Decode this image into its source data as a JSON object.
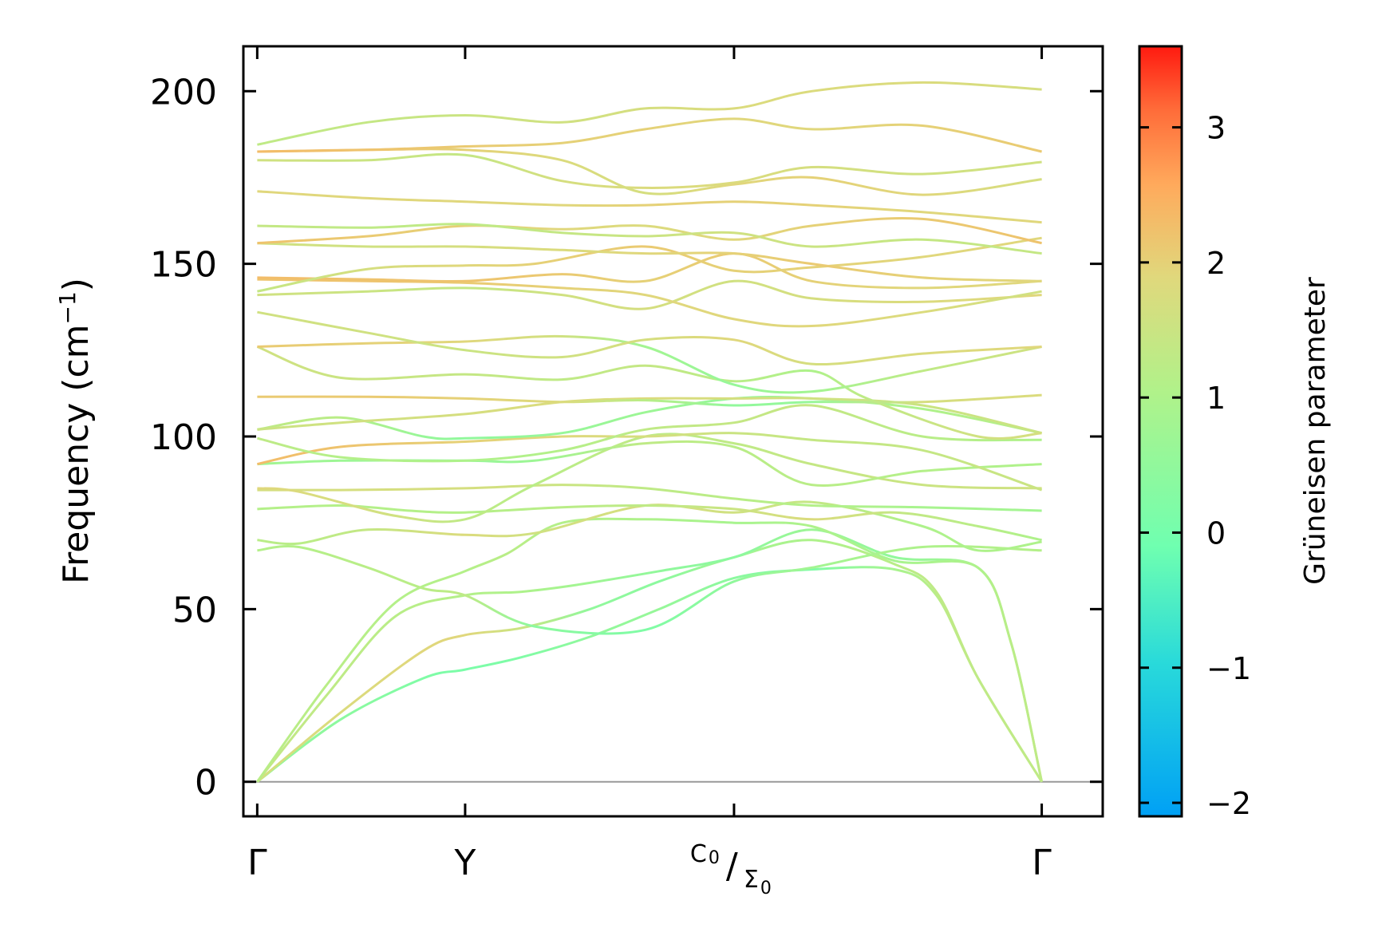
{
  "chart_data": {
    "type": "line",
    "title": "",
    "ylabel_main": "Frequency (cm",
    "ylabel_sup": "−1",
    "ylabel_close": ")",
    "ylim": [
      -10,
      213
    ],
    "yticks": [
      0,
      50,
      100,
      150,
      200
    ],
    "ytick_labels": [
      "0",
      "50",
      "100",
      "150",
      "200"
    ],
    "xlim": [
      -0.05,
      3.05
    ],
    "xticks": [
      0,
      0.75,
      1.72,
      2.83
    ],
    "xtick_labels": [
      {
        "text": "Γ",
        "kind": "plain"
      },
      {
        "text": "Y",
        "kind": "plain"
      },
      {
        "kind": "split",
        "upper": "C",
        "upper_sub": "0",
        "sep": "/",
        "lower": "Σ",
        "lower_sub": "0"
      },
      {
        "text": "Γ",
        "kind": "plain"
      }
    ],
    "colorbar": {
      "label": "Grüneisen parameter",
      "range": [
        -2.1,
        3.6
      ],
      "ticks": [
        -2,
        -1,
        0,
        1,
        2,
        3
      ],
      "tick_labels": [
        "−2",
        "−1",
        "0",
        "1",
        "2",
        "3"
      ],
      "colormap": "rainbow"
    },
    "zero_line_color": "#999999",
    "series": [
      {
        "name": "acoustic-1",
        "x": [
          0,
          0.3,
          0.6,
          0.75,
          0.95,
          1.2,
          1.45,
          1.72,
          2.0,
          2.3,
          2.45,
          2.6,
          2.83
        ],
        "y": [
          0,
          18,
          30,
          32.5,
          36,
          42,
          50,
          59,
          61.5,
          61.5,
          54,
          30,
          0
        ],
        "g": [
          0.6,
          0.4,
          0.2,
          0.1,
          0.2,
          0.5,
          0.6,
          0.4,
          0.2,
          0.9,
          1.2,
          1.3,
          1.3
        ]
      },
      {
        "name": "acoustic-2",
        "x": [
          0,
          0.3,
          0.6,
          0.75,
          0.95,
          1.2,
          1.45,
          1.72,
          2.0,
          2.3,
          2.45,
          2.6,
          2.83
        ],
        "y": [
          0,
          20,
          38,
          42.5,
          44.5,
          50,
          58,
          65,
          70,
          63,
          55,
          30,
          0
        ],
        "g": [
          1.7,
          1.8,
          1.9,
          1.9,
          1.5,
          0.5,
          0.4,
          0.8,
          1.0,
          1.2,
          1.3,
          1.3,
          1.3
        ]
      },
      {
        "name": "acoustic-3",
        "x": [
          0,
          0.25,
          0.5,
          0.75,
          0.95,
          1.15,
          1.45,
          1.72,
          2.0,
          2.3,
          2.6,
          2.72,
          2.83
        ],
        "y": [
          0,
          25,
          48,
          54,
          55,
          57,
          61,
          65,
          73,
          65,
          62,
          40,
          0
        ],
        "g": [
          1.4,
          1.3,
          1.2,
          1.1,
          1.0,
          0.8,
          0.5,
          0.4,
          0.7,
          0.5,
          0.9,
          1.1,
          1.3
        ]
      },
      {
        "name": "acoustic-4",
        "x": [
          0,
          0.25,
          0.5,
          0.75,
          0.9,
          1.1,
          1.4,
          1.72,
          2.0,
          2.3,
          2.6,
          2.72,
          2.83
        ],
        "y": [
          0,
          28,
          52,
          61,
          66,
          75,
          76,
          75,
          74,
          64,
          62,
          40,
          0
        ],
        "g": [
          1.2,
          1.2,
          1.1,
          1.1,
          1.2,
          1.1,
          1.0,
          0.9,
          1.0,
          0.9,
          1.0,
          1.2,
          1.3
        ]
      },
      {
        "name": "band-5",
        "x": [
          0,
          0.15,
          0.4,
          0.6,
          0.75,
          1.0,
          1.4,
          1.72,
          2.0,
          2.4,
          2.83
        ],
        "y": [
          67,
          68,
          62,
          56,
          54,
          45,
          44,
          58,
          62,
          68,
          67
        ],
        "g": [
          1.1,
          1.1,
          1.2,
          1.2,
          1.3,
          0.4,
          0.2,
          0.5,
          0.8,
          1.0,
          1.1
        ]
      },
      {
        "name": "band-6",
        "x": [
          0,
          0.15,
          0.4,
          0.75,
          1.0,
          1.4,
          1.72,
          2.0,
          2.4,
          2.6,
          2.83
        ],
        "y": [
          70,
          69,
          73,
          71.5,
          72,
          80,
          78,
          81,
          74,
          67,
          69.5
        ],
        "g": [
          1.2,
          1.2,
          1.4,
          1.8,
          1.6,
          1.7,
          1.6,
          1.4,
          1.0,
          1.0,
          1.0
        ]
      },
      {
        "name": "band-7",
        "x": [
          0,
          0.3,
          0.55,
          0.75,
          1.1,
          1.4,
          1.72,
          2.0,
          2.3,
          2.6,
          2.83
        ],
        "y": [
          79,
          80,
          78.5,
          78,
          79.5,
          80,
          79,
          76,
          78,
          74,
          70
        ],
        "g": [
          1.1,
          1.1,
          1.1,
          1.1,
          1.2,
          1.3,
          1.5,
          1.8,
          1.4,
          1.2,
          1.0
        ]
      },
      {
        "name": "band-8",
        "x": [
          0,
          0.3,
          0.75,
          1.1,
          1.4,
          1.72,
          2.0,
          2.4,
          2.83
        ],
        "y": [
          84.5,
          84.5,
          85,
          86,
          85,
          82,
          80,
          79.5,
          78.5
        ],
        "g": [
          1.7,
          1.7,
          1.7,
          1.5,
          1.3,
          1.2,
          1.1,
          0.9,
          0.8
        ]
      },
      {
        "name": "band-9",
        "x": [
          0,
          0.15,
          0.5,
          0.75,
          1.0,
          1.4,
          1.72,
          2.0,
          2.4,
          2.83
        ],
        "y": [
          85,
          84,
          77,
          76,
          86,
          100,
          98,
          92,
          86,
          85
        ],
        "g": [
          1.9,
          1.8,
          1.6,
          1.3,
          1.2,
          1.3,
          1.3,
          1.4,
          1.5,
          1.6
        ]
      },
      {
        "name": "band-10",
        "x": [
          0,
          0.3,
          0.75,
          1.0,
          1.4,
          1.72,
          2.0,
          2.4,
          2.83
        ],
        "y": [
          92,
          93,
          93,
          93,
          98,
          97,
          86,
          90,
          92
        ],
        "g": [
          0.8,
          0.7,
          0.6,
          0.7,
          1.3,
          1.2,
          1.2,
          1.1,
          1.0
        ]
      },
      {
        "name": "band-11",
        "x": [
          0,
          0.3,
          0.75,
          1.1,
          1.4,
          1.72,
          2.0,
          2.4,
          2.83
        ],
        "y": [
          92,
          97,
          98.5,
          100,
          100,
          101,
          99,
          96,
          84.5
        ],
        "g": [
          2.3,
          2.2,
          2.0,
          1.9,
          1.7,
          1.5,
          1.4,
          1.4,
          1.5
        ]
      },
      {
        "name": "band-12",
        "x": [
          0,
          0.3,
          0.75,
          1.1,
          1.4,
          1.72,
          2.0,
          2.4,
          2.83
        ],
        "y": [
          99.5,
          94,
          93,
          96,
          102,
          104,
          109,
          100,
          99
        ],
        "g": [
          1.3,
          1.1,
          1.0,
          1.1,
          1.3,
          1.4,
          1.4,
          1.2,
          1.0
        ]
      },
      {
        "name": "band-13",
        "x": [
          0,
          0.3,
          0.6,
          0.75,
          1.1,
          1.4,
          1.72,
          2.0,
          2.4,
          2.83
        ],
        "y": [
          102,
          105.5,
          100,
          99.5,
          101,
          107,
          111,
          111,
          108,
          101
        ],
        "g": [
          1.3,
          1.2,
          0.6,
          0.5,
          0.6,
          0.7,
          0.6,
          0.8,
          1.0,
          1.2
        ]
      },
      {
        "name": "band-14",
        "x": [
          0,
          0.3,
          0.75,
          1.1,
          1.4,
          1.72,
          2.0,
          2.4,
          2.83
        ],
        "y": [
          102,
          104,
          106.5,
          110,
          111,
          111,
          111,
          109,
          101
        ],
        "g": [
          1.5,
          1.6,
          1.7,
          1.8,
          1.8,
          1.7,
          1.6,
          1.5,
          1.5
        ]
      },
      {
        "name": "band-15",
        "x": [
          0,
          0.4,
          0.75,
          1.1,
          1.4,
          1.72,
          2.0,
          2.4,
          2.83
        ],
        "y": [
          111.5,
          111.5,
          111,
          110,
          110.5,
          109,
          110,
          110,
          112
        ],
        "g": [
          2.1,
          2.1,
          2.0,
          1.8,
          1.2,
          0.5,
          0.6,
          1.7,
          1.8
        ]
      },
      {
        "name": "band-16",
        "x": [
          0,
          0.3,
          0.75,
          1.1,
          1.4,
          1.72,
          2.0,
          2.2,
          2.6,
          2.83
        ],
        "y": [
          126,
          117,
          118,
          116.5,
          120.5,
          116,
          119,
          111,
          100,
          101
        ],
        "g": [
          1.6,
          1.5,
          1.4,
          1.3,
          1.4,
          1.2,
          1.0,
          1.3,
          1.6,
          1.7
        ]
      },
      {
        "name": "band-17",
        "x": [
          0,
          0.4,
          0.75,
          1.1,
          1.4,
          1.72,
          2.0,
          2.4,
          2.83
        ],
        "y": [
          126,
          127,
          127.5,
          129,
          126,
          115,
          113,
          119,
          126
        ],
        "g": [
          2.1,
          2.0,
          1.9,
          1.6,
          0.8,
          0.6,
          0.8,
          1.3,
          1.6
        ]
      },
      {
        "name": "band-18",
        "x": [
          0,
          0.4,
          0.75,
          1.1,
          1.4,
          1.72,
          2.0,
          2.4,
          2.83
        ],
        "y": [
          136,
          130,
          125,
          123,
          128,
          128,
          121,
          124,
          126
        ],
        "g": [
          1.6,
          1.6,
          1.5,
          1.6,
          1.7,
          1.9,
          1.7,
          1.8,
          1.9
        ]
      },
      {
        "name": "band-19",
        "x": [
          0,
          0.4,
          0.75,
          1.1,
          1.4,
          1.72,
          2.0,
          2.4,
          2.83
        ],
        "y": [
          141,
          142,
          143,
          141,
          137,
          145,
          140,
          139,
          141
        ],
        "g": [
          1.6,
          1.5,
          1.4,
          1.6,
          1.7,
          1.6,
          1.7,
          1.8,
          1.9
        ]
      },
      {
        "name": "band-20",
        "x": [
          0,
          0.4,
          0.75,
          1.1,
          1.4,
          1.72,
          2.0,
          2.4,
          2.83
        ],
        "y": [
          145.5,
          145,
          144.5,
          143,
          141,
          134,
          132,
          136,
          142
        ],
        "g": [
          2.2,
          2.2,
          2.1,
          2.0,
          1.9,
          1.9,
          1.9,
          1.8,
          1.6
        ]
      },
      {
        "name": "band-21",
        "x": [
          0,
          0.4,
          0.75,
          1.1,
          1.4,
          1.72,
          2.0,
          2.4,
          2.83
        ],
        "y": [
          146,
          145.5,
          145,
          147,
          145,
          153,
          145,
          143,
          145
        ],
        "g": [
          2.3,
          2.2,
          2.2,
          2.1,
          2.0,
          2.1,
          2.0,
          1.9,
          1.9
        ]
      },
      {
        "name": "band-22",
        "x": [
          0,
          0.4,
          0.75,
          1.0,
          1.4,
          1.72,
          2.0,
          2.4,
          2.83
        ],
        "y": [
          142,
          148.5,
          149.5,
          150,
          155,
          148,
          149,
          152,
          157.5
        ],
        "g": [
          1.4,
          1.7,
          1.9,
          2.0,
          2.1,
          2.0,
          2.0,
          1.9,
          1.9
        ]
      },
      {
        "name": "band-23",
        "x": [
          0,
          0.4,
          0.75,
          1.1,
          1.4,
          1.72,
          2.0,
          2.4,
          2.83
        ],
        "y": [
          156,
          155,
          155,
          154,
          153,
          153,
          150,
          146,
          145
        ],
        "g": [
          1.6,
          1.6,
          1.7,
          1.8,
          1.9,
          2.0,
          2.1,
          2.0,
          1.9
        ]
      },
      {
        "name": "band-24",
        "x": [
          0,
          0.4,
          0.75,
          1.1,
          1.4,
          1.72,
          2.0,
          2.4,
          2.83
        ],
        "y": [
          156,
          158,
          161,
          160,
          161,
          157,
          161,
          163,
          156
        ],
        "g": [
          2.2,
          2.1,
          2.0,
          1.9,
          1.8,
          1.9,
          2.0,
          2.1,
          2.2
        ]
      },
      {
        "name": "band-25",
        "x": [
          0,
          0.4,
          0.75,
          1.1,
          1.4,
          1.72,
          2.0,
          2.4,
          2.83
        ],
        "y": [
          161,
          160.5,
          161.5,
          159,
          158,
          159,
          155,
          157,
          153
        ],
        "g": [
          1.4,
          1.3,
          1.3,
          1.4,
          1.5,
          1.6,
          1.5,
          1.4,
          1.4
        ]
      },
      {
        "name": "band-26",
        "x": [
          0,
          0.4,
          0.75,
          1.1,
          1.4,
          1.72,
          2.0,
          2.4,
          2.83
        ],
        "y": [
          171,
          169,
          168,
          167,
          167,
          168,
          167,
          165,
          162
        ],
        "g": [
          1.9,
          1.9,
          1.9,
          1.9,
          2.0,
          2.0,
          2.0,
          1.9,
          1.9
        ]
      },
      {
        "name": "band-27",
        "x": [
          0,
          0.4,
          0.75,
          1.1,
          1.4,
          1.72,
          2.0,
          2.4,
          2.83
        ],
        "y": [
          180,
          180,
          181.5,
          174,
          172,
          173.5,
          178,
          176,
          179.5
        ],
        "g": [
          1.6,
          1.5,
          1.4,
          1.7,
          1.8,
          1.8,
          1.7,
          1.6,
          1.6
        ]
      },
      {
        "name": "band-28",
        "x": [
          0,
          0.4,
          0.75,
          1.1,
          1.4,
          1.72,
          2.0,
          2.4,
          2.83
        ],
        "y": [
          182.5,
          183,
          183,
          180,
          170.5,
          173,
          175,
          170,
          174.5
        ],
        "g": [
          2.3,
          2.2,
          2.0,
          1.8,
          1.7,
          1.9,
          2.0,
          1.9,
          1.7
        ]
      },
      {
        "name": "band-29",
        "x": [
          0,
          0.4,
          0.75,
          1.1,
          1.4,
          1.72,
          2.0,
          2.4,
          2.83
        ],
        "y": [
          182.5,
          183,
          184,
          185,
          189,
          192,
          189,
          190,
          182.5
        ],
        "g": [
          2.3,
          2.2,
          2.1,
          2.0,
          2.0,
          1.9,
          1.9,
          2.0,
          2.1
        ]
      },
      {
        "name": "band-30",
        "x": [
          0,
          0.4,
          0.75,
          1.1,
          1.4,
          1.72,
          2.0,
          2.4,
          2.83
        ],
        "y": [
          184.5,
          191,
          193,
          191,
          195,
          195,
          200,
          202.5,
          200.5
        ],
        "g": [
          1.3,
          1.4,
          1.5,
          1.6,
          1.7,
          1.8,
          1.8,
          1.8,
          1.7
        ]
      }
    ]
  }
}
